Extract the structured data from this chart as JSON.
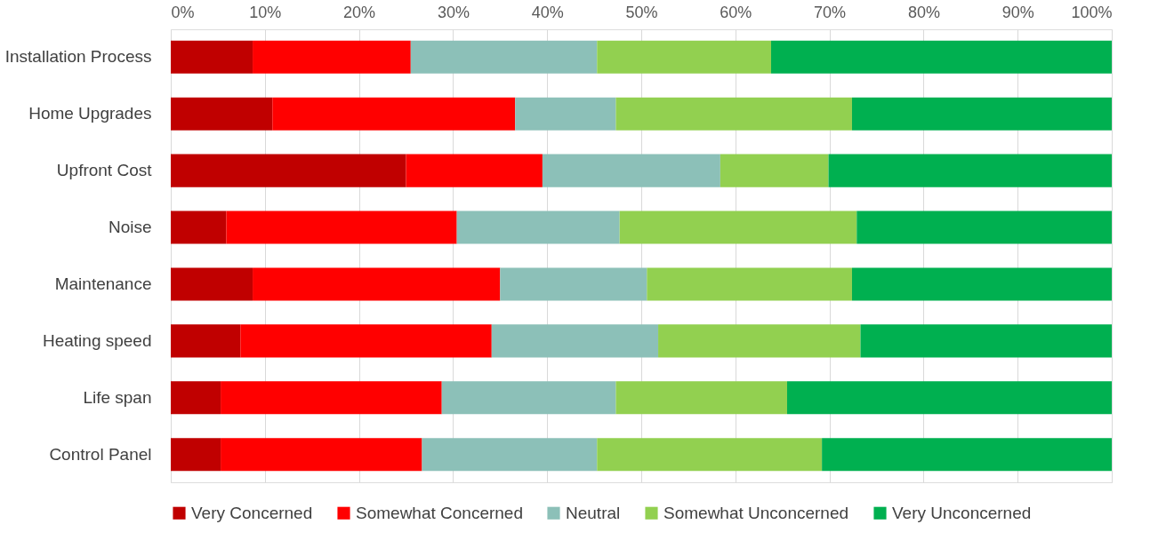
{
  "chart_data": {
    "type": "bar",
    "orientation": "horizontal",
    "stacked": true,
    "grid": "x",
    "legend": "bottom",
    "categories": [
      "Installation Process",
      "Home Upgrades",
      "Upfront Cost",
      "Noise",
      "Maintenance",
      "Heating speed",
      "Life span",
      "Control Panel"
    ],
    "xlim": [
      0,
      100
    ],
    "xticks": [
      {
        "value": 0,
        "label": "0%"
      },
      {
        "value": 10,
        "label": "10%"
      },
      {
        "value": 20,
        "label": "20%"
      },
      {
        "value": 30,
        "label": "30%"
      },
      {
        "value": 40,
        "label": "40%"
      },
      {
        "value": 50,
        "label": "50%"
      },
      {
        "value": 60,
        "label": "60%"
      },
      {
        "value": 70,
        "label": "70%"
      },
      {
        "value": 80,
        "label": "80%"
      },
      {
        "value": 90,
        "label": "90%"
      },
      {
        "value": 100,
        "label": "100%"
      }
    ],
    "series": [
      {
        "name": "Very Concerned",
        "color": "#c00000",
        "values": [
          8.7,
          10.8,
          25.0,
          5.9,
          8.7,
          7.4,
          5.3,
          5.3
        ]
      },
      {
        "name": "Somewhat Concerned",
        "color": "#ff0000",
        "values": [
          16.8,
          25.8,
          14.5,
          24.5,
          26.3,
          26.7,
          23.5,
          21.4
        ]
      },
      {
        "name": "Neutral",
        "color": "#8cc0b8",
        "values": [
          19.8,
          10.7,
          18.9,
          17.3,
          15.6,
          17.7,
          18.5,
          18.6
        ]
      },
      {
        "name": "Somewhat Unconcerned",
        "color": "#92d050",
        "values": [
          18.5,
          25.1,
          11.5,
          25.2,
          21.8,
          21.5,
          18.2,
          23.9
        ]
      },
      {
        "name": "Very Unconcerned",
        "color": "#00b050",
        "values": [
          36.2,
          27.6,
          30.1,
          27.1,
          27.6,
          26.7,
          34.5,
          30.8
        ]
      }
    ]
  }
}
